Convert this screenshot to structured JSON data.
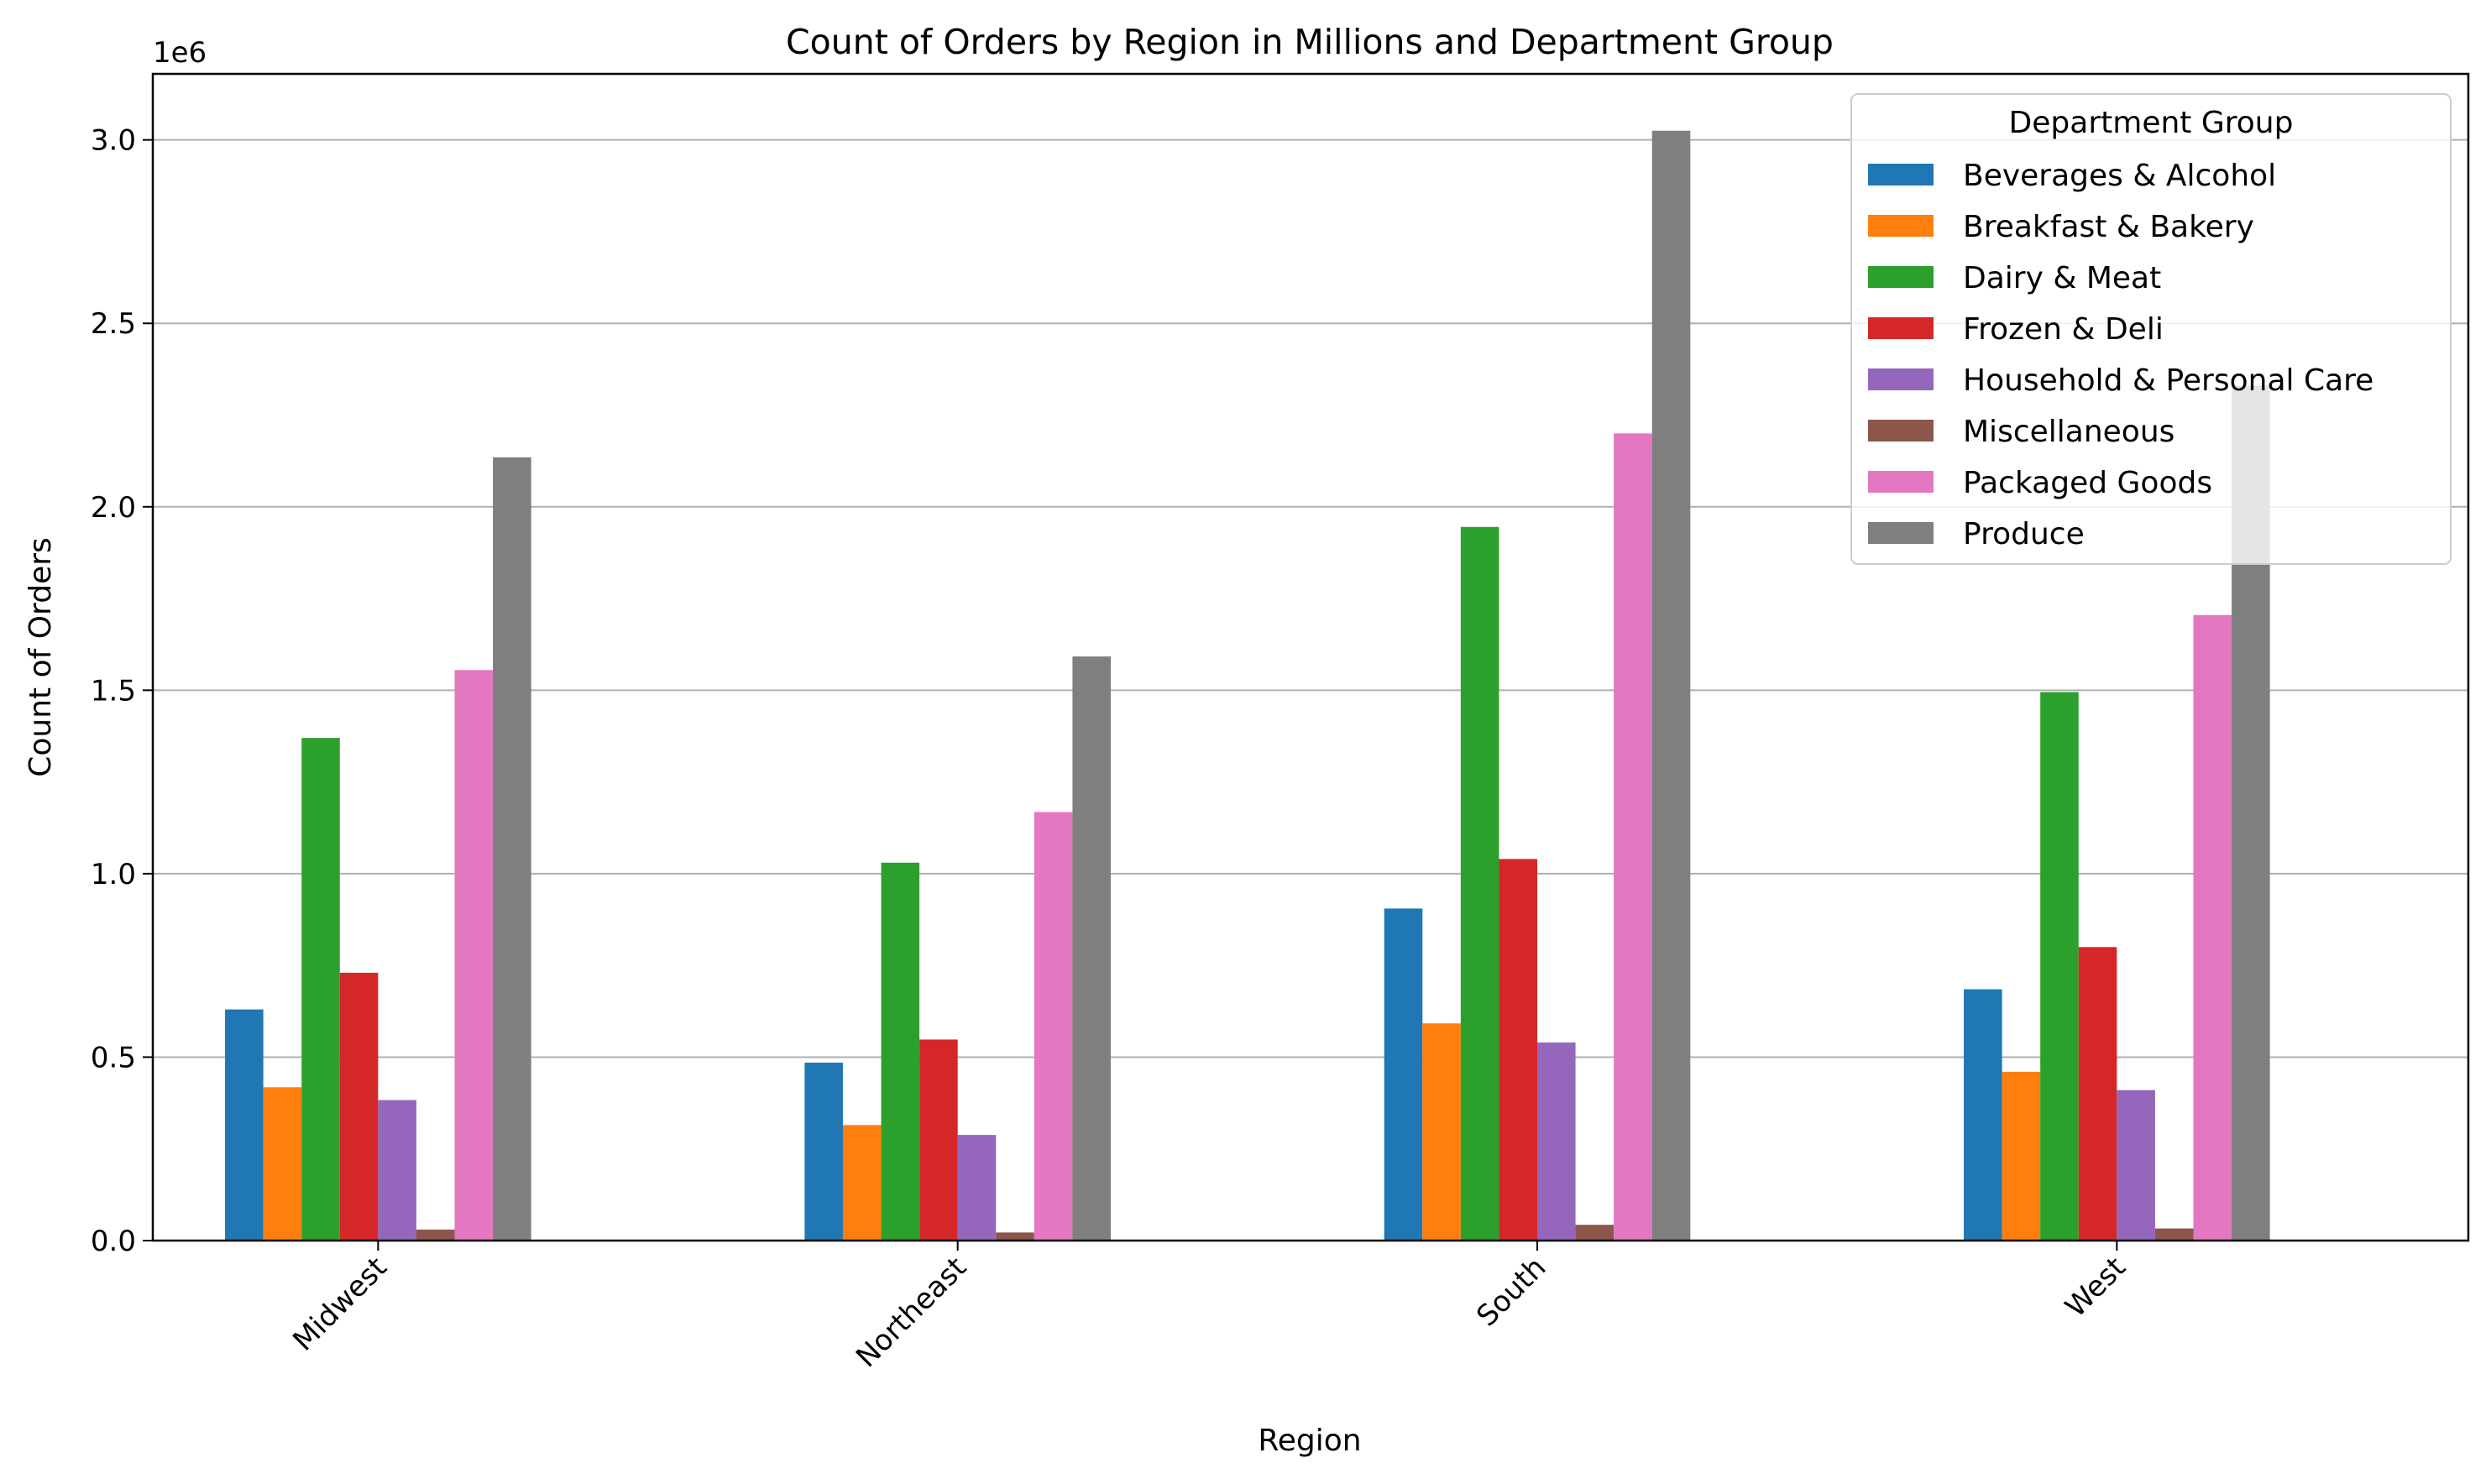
{
  "chart_data": {
    "type": "bar",
    "title": "Count of Orders by Region in Millions and Department Group",
    "xlabel": "Region",
    "ylabel": "Count of Orders",
    "offset_label": "1e6",
    "categories": [
      "Midwest",
      "Northeast",
      "South",
      "West"
    ],
    "ylim": [
      0,
      3180000
    ],
    "yticks": [
      {
        "value": 0,
        "label": "0.0"
      },
      {
        "value": 500000,
        "label": "0.5"
      },
      {
        "value": 1000000,
        "label": "1.0"
      },
      {
        "value": 1500000,
        "label": "1.5"
      },
      {
        "value": 2000000,
        "label": "2.0"
      },
      {
        "value": 2500000,
        "label": "2.5"
      },
      {
        "value": 3000000,
        "label": "3.0"
      }
    ],
    "grid": "y",
    "legend": {
      "title": "Department Group",
      "placement": "top-right"
    },
    "series": [
      {
        "name": "Beverages & Alcohol",
        "color": "#1f77b4",
        "values": [
          630000,
          485000,
          905000,
          685000
        ]
      },
      {
        "name": "Breakfast & Bakery",
        "color": "#ff7f0e",
        "values": [
          418000,
          315000,
          592000,
          460000
        ]
      },
      {
        "name": "Dairy & Meat",
        "color": "#2ca02c",
        "values": [
          1370000,
          1030000,
          1945000,
          1495000
        ]
      },
      {
        "name": "Frozen & Deli",
        "color": "#d62728",
        "values": [
          730000,
          548000,
          1040000,
          800000
        ]
      },
      {
        "name": "Household & Personal Care",
        "color": "#9467bd",
        "values": [
          383000,
          288000,
          540000,
          410000
        ]
      },
      {
        "name": "Miscellaneous",
        "color": "#8c564b",
        "values": [
          30000,
          22000,
          43000,
          33000
        ]
      },
      {
        "name": "Packaged Goods",
        "color": "#e377c2",
        "values": [
          1555000,
          1168000,
          2200000,
          1705000
        ]
      },
      {
        "name": "Produce",
        "color": "#7f7f7f",
        "values": [
          2135000,
          1592000,
          3025000,
          2330000
        ]
      }
    ]
  }
}
